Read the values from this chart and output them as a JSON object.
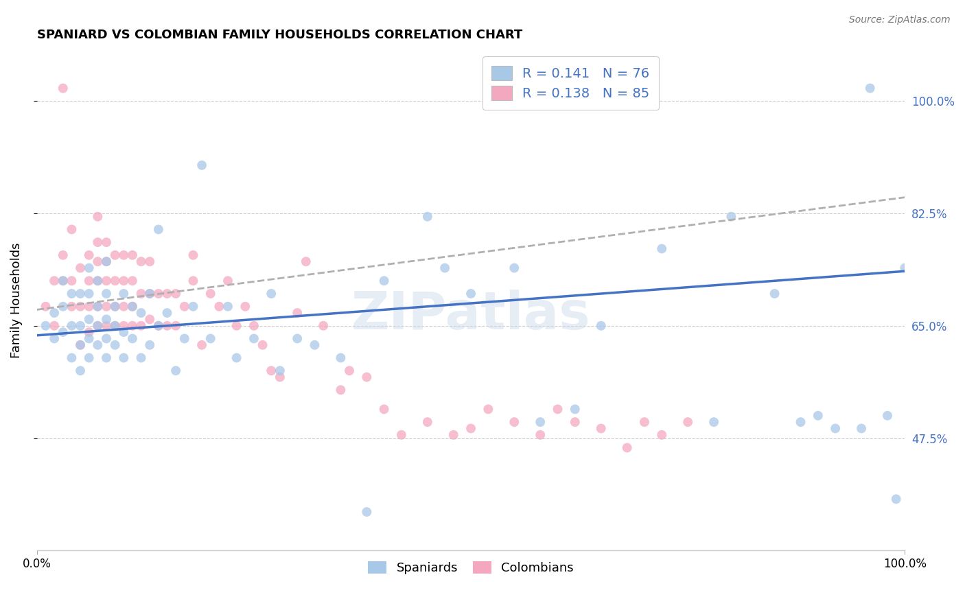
{
  "title": "SPANIARD VS COLOMBIAN FAMILY HOUSEHOLDS CORRELATION CHART",
  "source": "Source: ZipAtlas.com",
  "ylabel": "Family Households",
  "ytick_labels": [
    "100.0%",
    "82.5%",
    "65.0%",
    "47.5%"
  ],
  "ytick_values": [
    1.0,
    0.825,
    0.65,
    0.475
  ],
  "xlim": [
    0.0,
    1.0
  ],
  "ylim": [
    0.3,
    1.08
  ],
  "spaniards_color": "#a8c8e8",
  "colombians_color": "#f4a8c0",
  "spaniards_line_color": "#4472c4",
  "colombians_line_color": "#b0b0b0",
  "colombians_line_style": "--",
  "watermark": "ZIPatlas",
  "spaniards_x": [
    0.01,
    0.02,
    0.02,
    0.03,
    0.03,
    0.03,
    0.04,
    0.04,
    0.04,
    0.05,
    0.05,
    0.05,
    0.05,
    0.06,
    0.06,
    0.06,
    0.06,
    0.06,
    0.07,
    0.07,
    0.07,
    0.07,
    0.08,
    0.08,
    0.08,
    0.08,
    0.08,
    0.09,
    0.09,
    0.09,
    0.1,
    0.1,
    0.1,
    0.11,
    0.11,
    0.12,
    0.12,
    0.13,
    0.13,
    0.14,
    0.14,
    0.15,
    0.16,
    0.17,
    0.18,
    0.19,
    0.2,
    0.22,
    0.23,
    0.25,
    0.27,
    0.28,
    0.3,
    0.32,
    0.35,
    0.38,
    0.4,
    0.45,
    0.47,
    0.5,
    0.55,
    0.58,
    0.62,
    0.65,
    0.72,
    0.78,
    0.8,
    0.85,
    0.88,
    0.9,
    0.92,
    0.95,
    0.96,
    0.98,
    0.99,
    1.0
  ],
  "spaniards_y": [
    0.65,
    0.63,
    0.67,
    0.64,
    0.68,
    0.72,
    0.6,
    0.65,
    0.7,
    0.58,
    0.62,
    0.65,
    0.7,
    0.6,
    0.63,
    0.66,
    0.7,
    0.74,
    0.62,
    0.65,
    0.68,
    0.72,
    0.6,
    0.63,
    0.66,
    0.7,
    0.75,
    0.62,
    0.65,
    0.68,
    0.6,
    0.64,
    0.7,
    0.63,
    0.68,
    0.6,
    0.67,
    0.62,
    0.7,
    0.65,
    0.8,
    0.67,
    0.58,
    0.63,
    0.68,
    0.9,
    0.63,
    0.68,
    0.6,
    0.63,
    0.7,
    0.58,
    0.63,
    0.62,
    0.6,
    0.36,
    0.72,
    0.82,
    0.74,
    0.7,
    0.74,
    0.5,
    0.52,
    0.65,
    0.77,
    0.5,
    0.82,
    0.7,
    0.5,
    0.51,
    0.49,
    0.49,
    1.02,
    0.51,
    0.38,
    0.74
  ],
  "colombians_x": [
    0.01,
    0.02,
    0.02,
    0.03,
    0.03,
    0.03,
    0.04,
    0.04,
    0.04,
    0.05,
    0.05,
    0.05,
    0.06,
    0.06,
    0.06,
    0.06,
    0.07,
    0.07,
    0.07,
    0.07,
    0.07,
    0.07,
    0.08,
    0.08,
    0.08,
    0.08,
    0.08,
    0.09,
    0.09,
    0.09,
    0.09,
    0.1,
    0.1,
    0.1,
    0.1,
    0.11,
    0.11,
    0.11,
    0.11,
    0.12,
    0.12,
    0.12,
    0.13,
    0.13,
    0.13,
    0.14,
    0.14,
    0.15,
    0.15,
    0.16,
    0.16,
    0.17,
    0.18,
    0.18,
    0.19,
    0.2,
    0.21,
    0.22,
    0.23,
    0.24,
    0.25,
    0.26,
    0.27,
    0.28,
    0.3,
    0.31,
    0.33,
    0.35,
    0.36,
    0.38,
    0.4,
    0.42,
    0.45,
    0.48,
    0.5,
    0.52,
    0.55,
    0.58,
    0.6,
    0.62,
    0.65,
    0.68,
    0.7,
    0.72,
    0.75
  ],
  "colombians_y": [
    0.68,
    0.65,
    0.72,
    1.02,
    0.72,
    0.76,
    0.68,
    0.72,
    0.8,
    0.62,
    0.68,
    0.74,
    0.64,
    0.68,
    0.72,
    0.76,
    0.65,
    0.68,
    0.72,
    0.75,
    0.78,
    0.82,
    0.65,
    0.68,
    0.72,
    0.75,
    0.78,
    0.65,
    0.68,
    0.72,
    0.76,
    0.65,
    0.68,
    0.72,
    0.76,
    0.65,
    0.68,
    0.72,
    0.76,
    0.65,
    0.7,
    0.75,
    0.66,
    0.7,
    0.75,
    0.65,
    0.7,
    0.65,
    0.7,
    0.65,
    0.7,
    0.68,
    0.72,
    0.76,
    0.62,
    0.7,
    0.68,
    0.72,
    0.65,
    0.68,
    0.65,
    0.62,
    0.58,
    0.57,
    0.67,
    0.75,
    0.65,
    0.55,
    0.58,
    0.57,
    0.52,
    0.48,
    0.5,
    0.48,
    0.49,
    0.52,
    0.5,
    0.48,
    0.52,
    0.5,
    0.49,
    0.46,
    0.5,
    0.48,
    0.5
  ]
}
